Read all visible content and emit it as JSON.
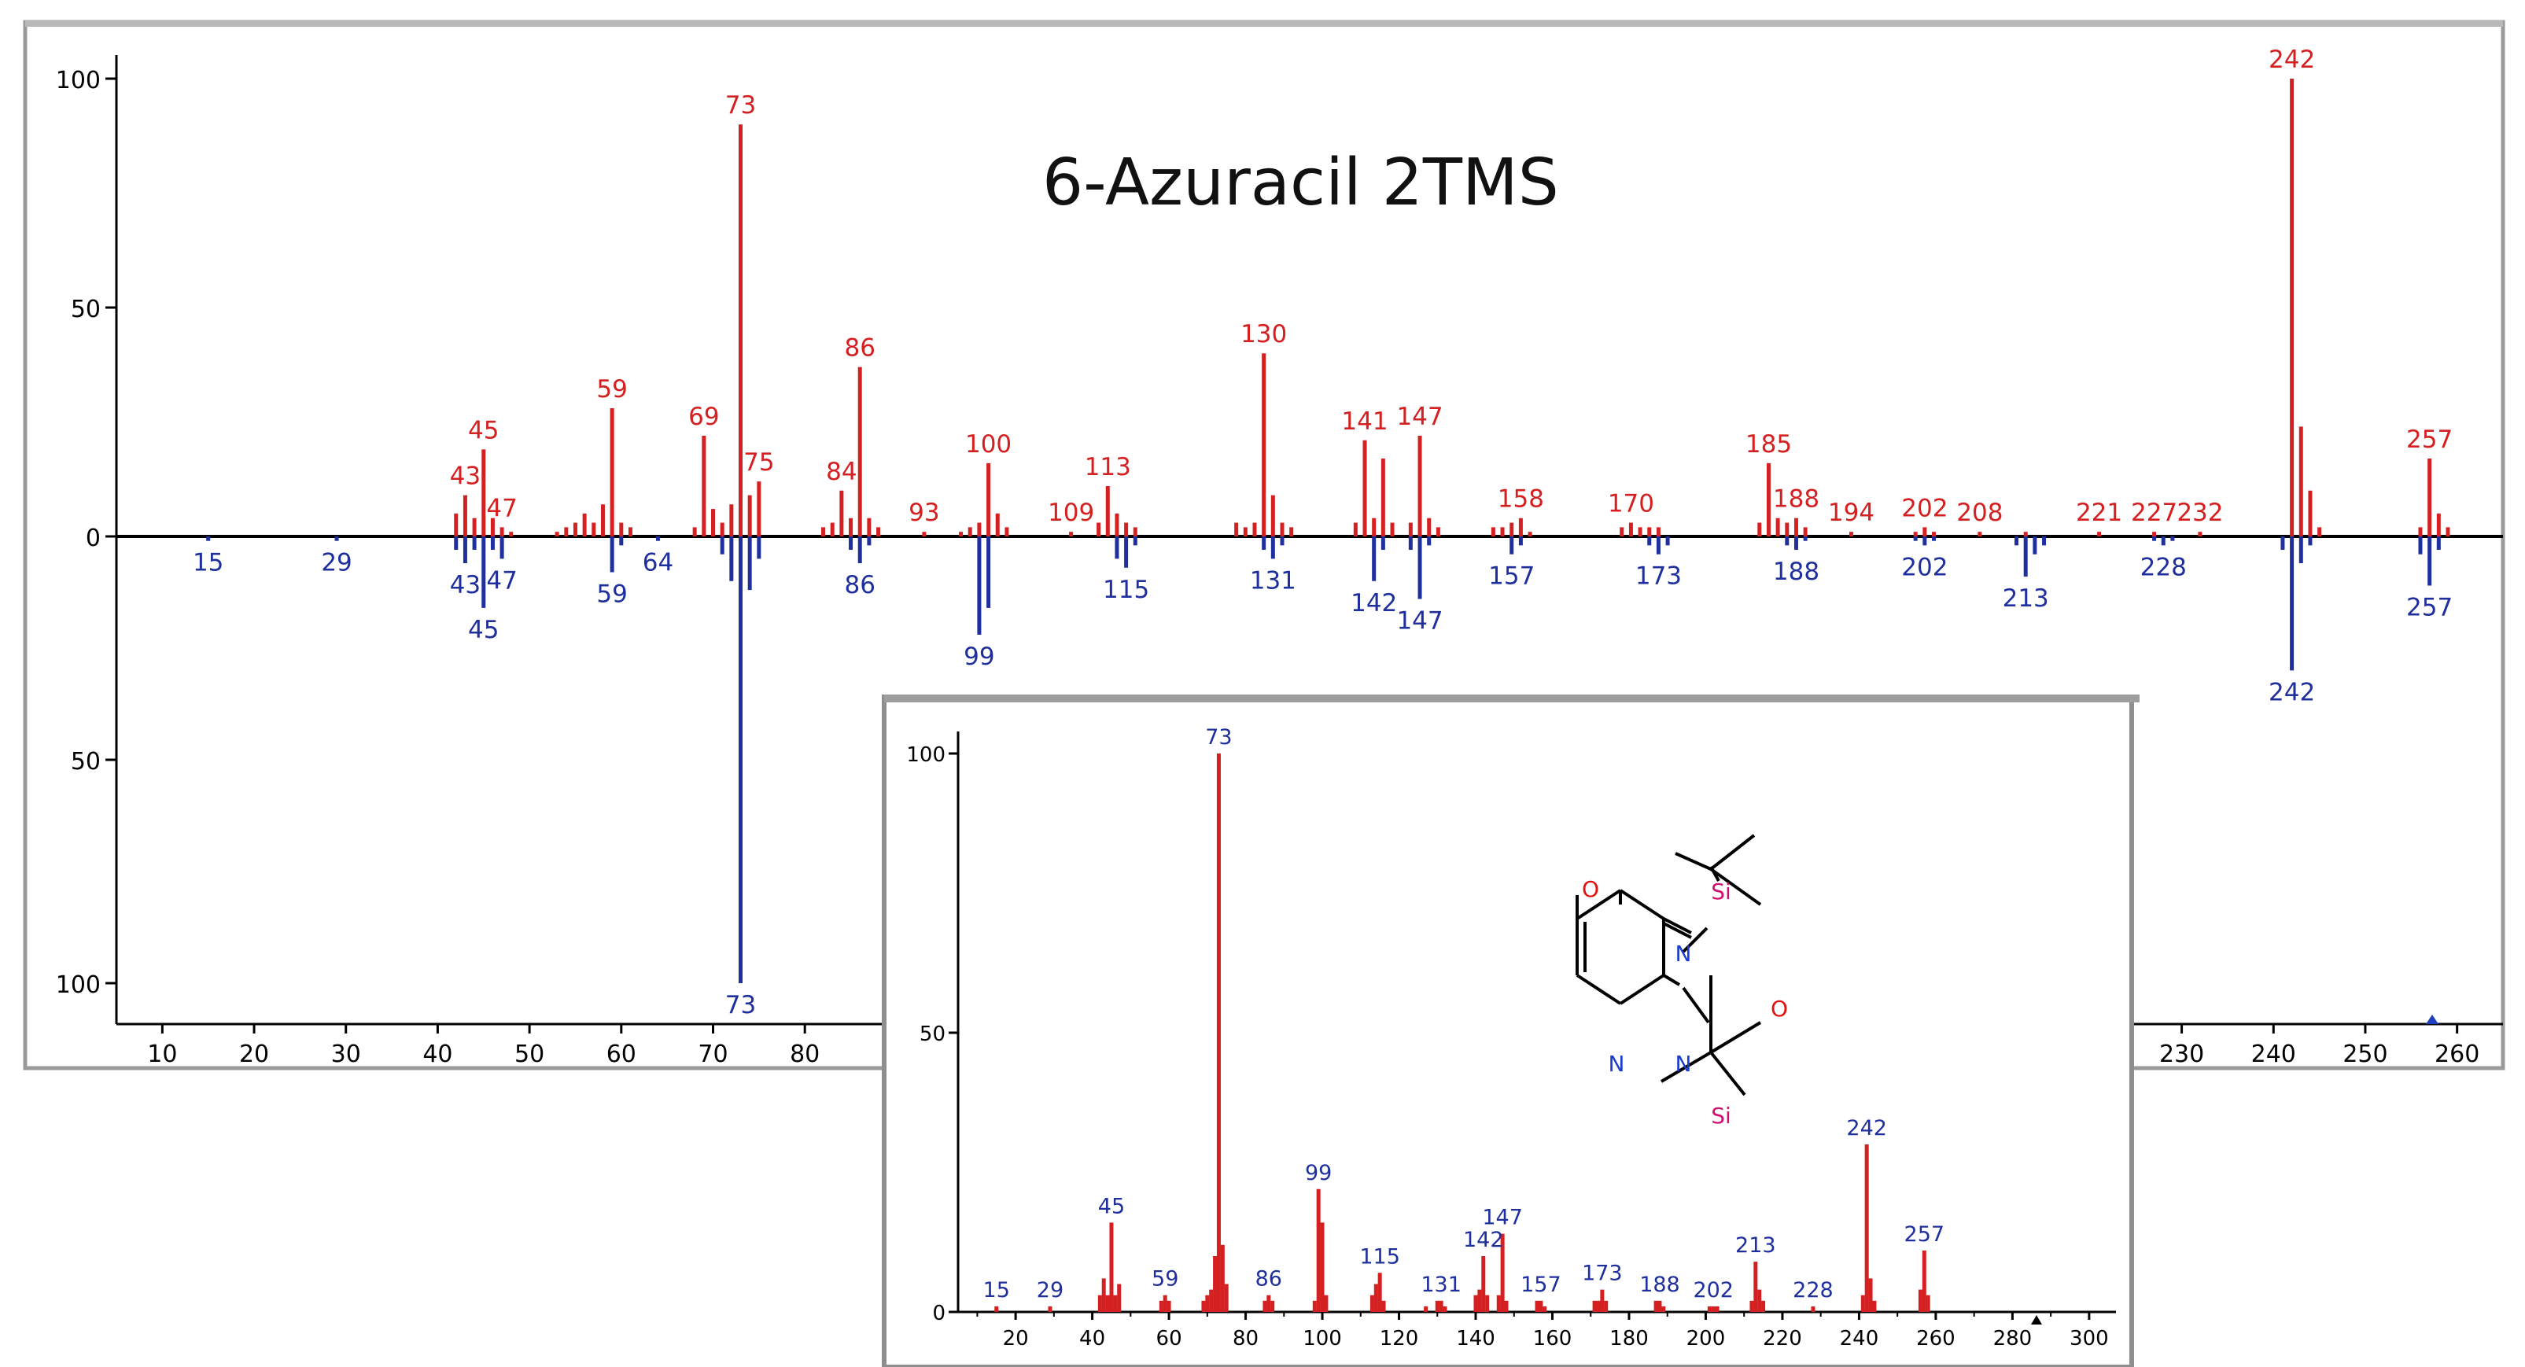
{
  "chart_data": [
    {
      "type": "bar",
      "title": "6-Azuracil 2TMS",
      "xlabel": "",
      "ylabel": "",
      "xlim": [
        5,
        265
      ],
      "ylim": [
        -100,
        100
      ],
      "x_ticks": [
        10,
        20,
        30,
        40,
        50,
        60,
        70,
        80,
        230,
        240,
        250,
        260
      ],
      "y_ticks": [
        {
          "value": 100,
          "label": "100"
        },
        {
          "value": 50,
          "label": "50"
        },
        {
          "value": 0,
          "label": "0"
        },
        {
          "value": -50,
          "label": "50"
        },
        {
          "value": -100,
          "label": "100"
        }
      ],
      "colors": {
        "top": "#d42020",
        "bottom": "#1f2f9e",
        "axis": "#000000"
      },
      "series": [
        {
          "direction": "up",
          "peaks": [
            [
              42,
              5
            ],
            [
              43,
              9
            ],
            [
              44,
              4
            ],
            [
              45,
              19
            ],
            [
              46,
              4
            ],
            [
              47,
              2
            ],
            [
              48,
              1
            ],
            [
              53,
              1
            ],
            [
              54,
              2
            ],
            [
              55,
              3
            ],
            [
              56,
              5
            ],
            [
              57,
              3
            ],
            [
              58,
              7
            ],
            [
              59,
              28
            ],
            [
              60,
              3
            ],
            [
              61,
              2
            ],
            [
              68,
              2
            ],
            [
              69,
              22
            ],
            [
              70,
              6
            ],
            [
              71,
              3
            ],
            [
              72,
              7
            ],
            [
              73,
              90
            ],
            [
              74,
              9
            ],
            [
              75,
              12
            ],
            [
              82,
              2
            ],
            [
              83,
              3
            ],
            [
              84,
              10
            ],
            [
              85,
              4
            ],
            [
              86,
              37
            ],
            [
              87,
              4
            ],
            [
              88,
              2
            ],
            [
              93,
              1
            ],
            [
              97,
              1
            ],
            [
              98,
              2
            ],
            [
              99,
              3
            ],
            [
              100,
              16
            ],
            [
              101,
              5
            ],
            [
              102,
              2
            ],
            [
              109,
              1
            ],
            [
              112,
              3
            ],
            [
              113,
              11
            ],
            [
              114,
              5
            ],
            [
              115,
              3
            ],
            [
              116,
              2
            ],
            [
              127,
              3
            ],
            [
              128,
              2
            ],
            [
              129,
              3
            ],
            [
              130,
              40
            ],
            [
              131,
              9
            ],
            [
              132,
              3
            ],
            [
              133,
              2
            ],
            [
              140,
              3
            ],
            [
              141,
              21
            ],
            [
              142,
              4
            ],
            [
              143,
              17
            ],
            [
              144,
              3
            ],
            [
              146,
              3
            ],
            [
              147,
              22
            ],
            [
              148,
              4
            ],
            [
              149,
              2
            ],
            [
              155,
              2
            ],
            [
              156,
              2
            ],
            [
              157,
              3
            ],
            [
              158,
              4
            ],
            [
              159,
              1
            ],
            [
              169,
              2
            ],
            [
              170,
              3
            ],
            [
              171,
              2
            ],
            [
              172,
              2
            ],
            [
              173,
              2
            ],
            [
              184,
              3
            ],
            [
              185,
              16
            ],
            [
              186,
              4
            ],
            [
              187,
              3
            ],
            [
              188,
              4
            ],
            [
              189,
              2
            ],
            [
              194,
              1
            ],
            [
              201,
              1
            ],
            [
              202,
              2
            ],
            [
              203,
              1
            ],
            [
              208,
              1
            ],
            [
              213,
              1
            ],
            [
              221,
              1
            ],
            [
              227,
              1
            ],
            [
              232,
              1
            ],
            [
              242,
              100
            ],
            [
              243,
              24
            ],
            [
              244,
              10
            ],
            [
              245,
              2
            ],
            [
              256,
              2
            ],
            [
              257,
              17
            ],
            [
              258,
              5
            ],
            [
              259,
              2
            ]
          ],
          "labels": [
            [
              43,
              "43"
            ],
            [
              45,
              "45"
            ],
            [
              47,
              "47"
            ],
            [
              59,
              "59"
            ],
            [
              69,
              "69"
            ],
            [
              73,
              "73"
            ],
            [
              75,
              "75"
            ],
            [
              84,
              "84"
            ],
            [
              86,
              "86"
            ],
            [
              93,
              "93"
            ],
            [
              100,
              "100"
            ],
            [
              109,
              "109"
            ],
            [
              113,
              "113"
            ],
            [
              130,
              "130"
            ],
            [
              141,
              "141"
            ],
            [
              147,
              "147"
            ],
            [
              158,
              "158"
            ],
            [
              170,
              "170"
            ],
            [
              185,
              "185"
            ],
            [
              188,
              "188"
            ],
            [
              194,
              "194"
            ],
            [
              202,
              "202"
            ],
            [
              208,
              "208"
            ],
            [
              221,
              "221"
            ],
            [
              227,
              "227"
            ],
            [
              232,
              "232"
            ],
            [
              242,
              "242"
            ],
            [
              257,
              "257"
            ]
          ]
        },
        {
          "direction": "down",
          "peaks": [
            [
              15,
              1
            ],
            [
              29,
              1
            ],
            [
              42,
              3
            ],
            [
              43,
              6
            ],
            [
              44,
              3
            ],
            [
              45,
              16
            ],
            [
              46,
              3
            ],
            [
              47,
              5
            ],
            [
              59,
              8
            ],
            [
              60,
              2
            ],
            [
              64,
              1
            ],
            [
              71,
              4
            ],
            [
              72,
              10
            ],
            [
              73,
              100
            ],
            [
              74,
              12
            ],
            [
              75,
              5
            ],
            [
              85,
              3
            ],
            [
              86,
              6
            ],
            [
              87,
              2
            ],
            [
              99,
              22
            ],
            [
              100,
              16
            ],
            [
              114,
              5
            ],
            [
              115,
              7
            ],
            [
              116,
              2
            ],
            [
              130,
              3
            ],
            [
              131,
              5
            ],
            [
              132,
              2
            ],
            [
              142,
              10
            ],
            [
              143,
              3
            ],
            [
              146,
              3
            ],
            [
              147,
              14
            ],
            [
              148,
              2
            ],
            [
              157,
              4
            ],
            [
              158,
              2
            ],
            [
              172,
              2
            ],
            [
              173,
              4
            ],
            [
              174,
              2
            ],
            [
              187,
              2
            ],
            [
              188,
              3
            ],
            [
              189,
              1
            ],
            [
              201,
              1
            ],
            [
              202,
              2
            ],
            [
              203,
              1
            ],
            [
              212,
              2
            ],
            [
              213,
              9
            ],
            [
              214,
              4
            ],
            [
              215,
              2
            ],
            [
              227,
              1
            ],
            [
              228,
              2
            ],
            [
              229,
              1
            ],
            [
              241,
              3
            ],
            [
              242,
              30
            ],
            [
              243,
              6
            ],
            [
              244,
              2
            ],
            [
              256,
              4
            ],
            [
              257,
              11
            ],
            [
              258,
              3
            ]
          ],
          "labels": [
            [
              15,
              "15"
            ],
            [
              29,
              "29"
            ],
            [
              43,
              "43"
            ],
            [
              45,
              "45"
            ],
            [
              47,
              "47"
            ],
            [
              59,
              "59"
            ],
            [
              64,
              "64"
            ],
            [
              73,
              "73"
            ],
            [
              86,
              "86"
            ],
            [
              99,
              "99"
            ],
            [
              115,
              "115"
            ],
            [
              131,
              "131"
            ],
            [
              142,
              "142"
            ],
            [
              147,
              "147"
            ],
            [
              157,
              "157"
            ],
            [
              173,
              "173"
            ],
            [
              188,
              "188"
            ],
            [
              202,
              "202"
            ],
            [
              213,
              "213"
            ],
            [
              228,
              "228"
            ],
            [
              242,
              "242"
            ],
            [
              257,
              "257"
            ]
          ]
        }
      ]
    },
    {
      "type": "bar",
      "title": "",
      "xlabel": "",
      "ylabel": "",
      "xlim": [
        5,
        307
      ],
      "ylim": [
        0,
        100
      ],
      "x_ticks": [
        20,
        40,
        60,
        80,
        100,
        120,
        140,
        160,
        180,
        200,
        220,
        240,
        260,
        280,
        300
      ],
      "y_ticks": [
        {
          "value": 100,
          "label": "100"
        },
        {
          "value": 50,
          "label": "50"
        },
        {
          "value": 0,
          "label": "0"
        }
      ],
      "colors": {
        "bars": "#d42020",
        "labels": "#1f2f9e",
        "axis": "#000000"
      },
      "peaks": [
        [
          15,
          1
        ],
        [
          29,
          1
        ],
        [
          42,
          3
        ],
        [
          43,
          6
        ],
        [
          44,
          3
        ],
        [
          45,
          16
        ],
        [
          46,
          3
        ],
        [
          47,
          5
        ],
        [
          58,
          2
        ],
        [
          59,
          3
        ],
        [
          60,
          2
        ],
        [
          69,
          2
        ],
        [
          70,
          3
        ],
        [
          71,
          4
        ],
        [
          72,
          10
        ],
        [
          73,
          100
        ],
        [
          74,
          12
        ],
        [
          75,
          5
        ],
        [
          85,
          2
        ],
        [
          86,
          3
        ],
        [
          87,
          2
        ],
        [
          98,
          2
        ],
        [
          99,
          22
        ],
        [
          100,
          16
        ],
        [
          101,
          3
        ],
        [
          113,
          3
        ],
        [
          114,
          5
        ],
        [
          115,
          7
        ],
        [
          116,
          2
        ],
        [
          127,
          1
        ],
        [
          130,
          2
        ],
        [
          131,
          2
        ],
        [
          132,
          1
        ],
        [
          140,
          3
        ],
        [
          141,
          4
        ],
        [
          142,
          10
        ],
        [
          143,
          3
        ],
        [
          146,
          3
        ],
        [
          147,
          14
        ],
        [
          148,
          2
        ],
        [
          156,
          2
        ],
        [
          157,
          2
        ],
        [
          158,
          1
        ],
        [
          171,
          2
        ],
        [
          172,
          2
        ],
        [
          173,
          4
        ],
        [
          174,
          2
        ],
        [
          187,
          2
        ],
        [
          188,
          2
        ],
        [
          189,
          1
        ],
        [
          201,
          1
        ],
        [
          202,
          1
        ],
        [
          203,
          1
        ],
        [
          212,
          2
        ],
        [
          213,
          9
        ],
        [
          214,
          4
        ],
        [
          215,
          2
        ],
        [
          228,
          1
        ],
        [
          241,
          3
        ],
        [
          242,
          30
        ],
        [
          243,
          6
        ],
        [
          244,
          2
        ],
        [
          256,
          4
        ],
        [
          257,
          11
        ],
        [
          258,
          3
        ]
      ],
      "labels": [
        [
          15,
          "15"
        ],
        [
          29,
          "29"
        ],
        [
          45,
          "45"
        ],
        [
          59,
          "59"
        ],
        [
          73,
          "73"
        ],
        [
          86,
          "86"
        ],
        [
          99,
          "99"
        ],
        [
          115,
          "115"
        ],
        [
          131,
          "131"
        ],
        [
          142,
          "142"
        ],
        [
          147,
          "147"
        ],
        [
          157,
          "157"
        ],
        [
          173,
          "173"
        ],
        [
          188,
          "188"
        ],
        [
          202,
          "202"
        ],
        [
          213,
          "213"
        ],
        [
          228,
          "228"
        ],
        [
          242,
          "242"
        ],
        [
          257,
          "257"
        ]
      ]
    }
  ],
  "structure": {
    "atoms": {
      "oxygen": "O",
      "nitrogen": "N",
      "silicon": "Si"
    },
    "colors": {
      "oxygen": "#e01010",
      "nitrogen": "#1a3cd0",
      "silicon": "#d01070",
      "bond": "#000000"
    }
  }
}
